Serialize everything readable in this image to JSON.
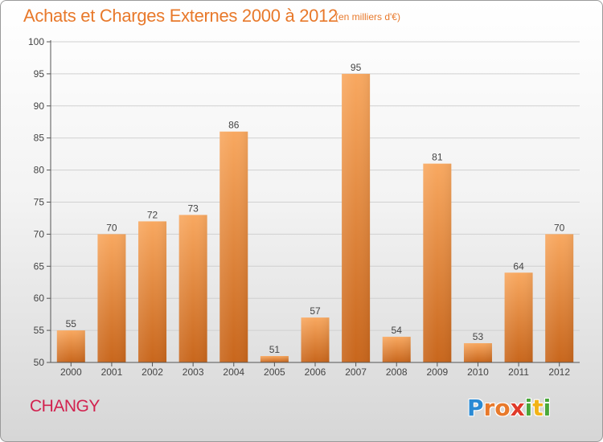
{
  "header": {
    "title": "Achats et Charges Externes 2000 à 2012",
    "subtitle": "(en milliers d'€)"
  },
  "footer": {
    "commune": "CHANGY",
    "brand": "Proxiti",
    "brand_letters": [
      {
        "char": "P",
        "color": "#2a8ad4"
      },
      {
        "char": "r",
        "color": "#e8792b"
      },
      {
        "char": "o",
        "color": "#e8792b"
      },
      {
        "char": "x",
        "color": "#e03a2a"
      },
      {
        "char": "i",
        "color": "#4aa83a"
      },
      {
        "char": "t",
        "color": "#f2b317"
      },
      {
        "char": "i",
        "color": "#4aa83a"
      }
    ]
  },
  "colors": {
    "bar_top": "#f8a860",
    "bar_bottom": "#c8661c",
    "title": "#e8792b",
    "commune": "#d2224f",
    "grid": "#d0d0d0",
    "axis": "#555555"
  },
  "chart_data": {
    "type": "bar",
    "title": "Achats et Charges Externes 2000 à 2012",
    "subtitle": "(en milliers d'€)",
    "categories": [
      "2000",
      "2001",
      "2002",
      "2003",
      "2004",
      "2005",
      "2006",
      "2007",
      "2008",
      "2009",
      "2010",
      "2011",
      "2012"
    ],
    "values": [
      55,
      70,
      72,
      73,
      86,
      51,
      57,
      95,
      54,
      81,
      53,
      64,
      70
    ],
    "ylim": [
      50,
      100
    ],
    "yticks": [
      50,
      55,
      60,
      65,
      70,
      75,
      80,
      85,
      90,
      95,
      100
    ],
    "grid": true,
    "xlabel": "",
    "ylabel": ""
  }
}
